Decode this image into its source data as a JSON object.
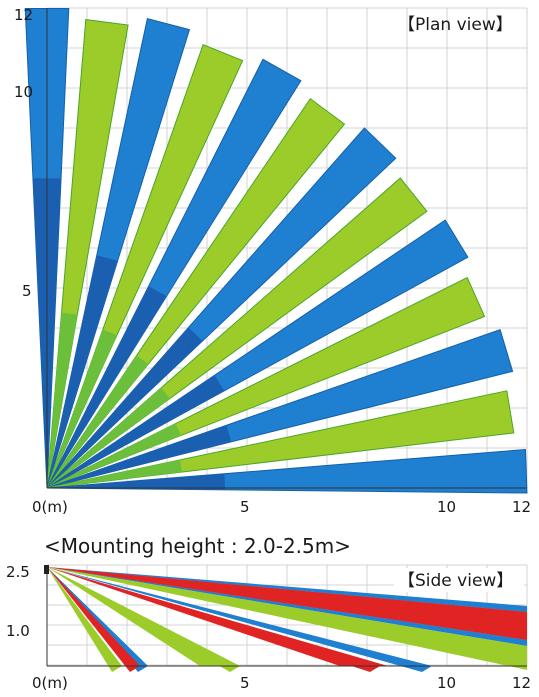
{
  "plan": {
    "title": "【Plan view】",
    "origin_label": "0(m)",
    "x_ticks": [
      "5",
      "10",
      "12"
    ],
    "y_ticks": [
      "5",
      "10",
      "12"
    ],
    "colors": {
      "blue": "#1f7fd0",
      "blue_dark": "#1a5fb0",
      "green": "#9ccc2a",
      "green_dark": "#6cbf3a"
    }
  },
  "side": {
    "heading": "<Mounting height : 2.0-2.5m>",
    "title": "【Side view】",
    "origin_label": "0(m)",
    "x_ticks": [
      "5",
      "10",
      "12"
    ],
    "y_ticks": [
      "2.5",
      "1.0"
    ],
    "colors": {
      "red": "#e02424",
      "blue": "#1f7fd0",
      "green": "#9ccc2a"
    }
  }
}
